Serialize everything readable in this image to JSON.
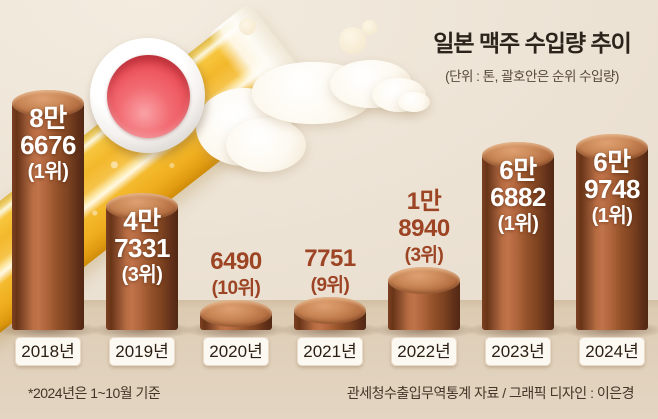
{
  "header": {
    "title": "일본 맥주 수입량 추이",
    "subtitle": "(단위 : 톤, 괄호안은 순위 수입량)"
  },
  "footer": {
    "note": "*2024년은 1~10월 기준",
    "source": "관세청수출입무역통계 자료 / 그래픽 디자인 : 이은경"
  },
  "chart_data": {
    "type": "bar",
    "title": "일본 맥주 수입량 추이",
    "unit_note": "(단위 : 톤, 괄호안은 순위 수입량)",
    "categories": [
      "2018년",
      "2019년",
      "2020년",
      "2021년",
      "2022년",
      "2023년",
      "2024년"
    ],
    "values": [
      86676,
      47331,
      6490,
      7751,
      18940,
      66882,
      69748
    ],
    "ranks": [
      "1위",
      "3위",
      "10위",
      "9위",
      "3위",
      "1위",
      "1위"
    ],
    "ylim": [
      0,
      90000
    ],
    "grid": false,
    "legend": false,
    "bar_style": "3d-cylinder",
    "bars": [
      {
        "category": "2018년",
        "value": 86676,
        "rank": "1위",
        "label_lines": [
          "8만",
          "6676",
          "(1위)"
        ],
        "label_placement": "inside"
      },
      {
        "category": "2019년",
        "value": 47331,
        "rank": "3위",
        "label_lines": [
          "4만",
          "7331",
          "(3위)"
        ],
        "label_placement": "inside"
      },
      {
        "category": "2020년",
        "value": 6490,
        "rank": "10위",
        "label_lines": [
          "6490",
          "(10위)"
        ],
        "label_placement": "above"
      },
      {
        "category": "2021년",
        "value": 7751,
        "rank": "9위",
        "label_lines": [
          "7751",
          "(9위)"
        ],
        "label_placement": "above"
      },
      {
        "category": "2022년",
        "value": 18940,
        "rank": "3위",
        "label_lines": [
          "1만",
          "8940",
          "(3위)"
        ],
        "label_placement": "above"
      },
      {
        "category": "2023년",
        "value": 66882,
        "rank": "1위",
        "label_lines": [
          "6만",
          "6882",
          "(1위)"
        ],
        "label_placement": "inside"
      },
      {
        "category": "2024년",
        "value": 69748,
        "rank": "1위",
        "label_lines": [
          "6만",
          "9748",
          "(1위)"
        ],
        "label_placement": "inside"
      }
    ]
  },
  "decor": {
    "flag_icon": "japan-flag-badge",
    "illustration": "tilted-beer-glass-with-foam"
  },
  "colors": {
    "background": "#ece2d4",
    "ground": "#ddcbb3",
    "bar_dark": "#63311a",
    "bar_light": "#c1734a",
    "label_on_bar": "#ffffff",
    "label_above_bar": "#9c4423",
    "title_text": "#2c241b",
    "year_pill_bg": "#fcf9f2",
    "beer_gold": "#f3b82b",
    "flag_red": "#ee565e"
  }
}
